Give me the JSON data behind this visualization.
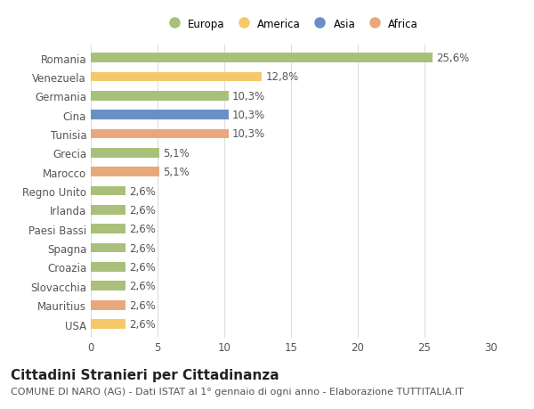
{
  "countries": [
    "Romania",
    "Venezuela",
    "Germania",
    "Cina",
    "Tunisia",
    "Grecia",
    "Marocco",
    "Regno Unito",
    "Irlanda",
    "Paesi Bassi",
    "Spagna",
    "Croazia",
    "Slovacchia",
    "Mauritius",
    "USA"
  ],
  "values": [
    25.6,
    12.8,
    10.3,
    10.3,
    10.3,
    5.1,
    5.1,
    2.6,
    2.6,
    2.6,
    2.6,
    2.6,
    2.6,
    2.6,
    2.6
  ],
  "labels": [
    "25,6%",
    "12,8%",
    "10,3%",
    "10,3%",
    "10,3%",
    "5,1%",
    "5,1%",
    "2,6%",
    "2,6%",
    "2,6%",
    "2,6%",
    "2,6%",
    "2,6%",
    "2,6%",
    "2,6%"
  ],
  "continents": [
    "Europa",
    "America",
    "Europa",
    "Asia",
    "Africa",
    "Europa",
    "Africa",
    "Europa",
    "Europa",
    "Europa",
    "Europa",
    "Europa",
    "Europa",
    "Africa",
    "America"
  ],
  "continent_colors": {
    "Europa": "#a8c07a",
    "America": "#f5c96a",
    "Asia": "#6a8fc4",
    "Africa": "#e8a87c"
  },
  "legend_order": [
    "Europa",
    "America",
    "Asia",
    "Africa"
  ],
  "title": "Cittadini Stranieri per Cittadinanza",
  "subtitle": "COMUNE DI NARO (AG) - Dati ISTAT al 1° gennaio di ogni anno - Elaborazione TUTTITALIA.IT",
  "xlim": [
    0,
    30
  ],
  "xticks": [
    0,
    5,
    10,
    15,
    20,
    25,
    30
  ],
  "bg_color": "#ffffff",
  "grid_color": "#dddddd",
  "bar_height": 0.5,
  "label_fontsize": 8.5,
  "tick_fontsize": 8.5,
  "title_fontsize": 11,
  "subtitle_fontsize": 8
}
